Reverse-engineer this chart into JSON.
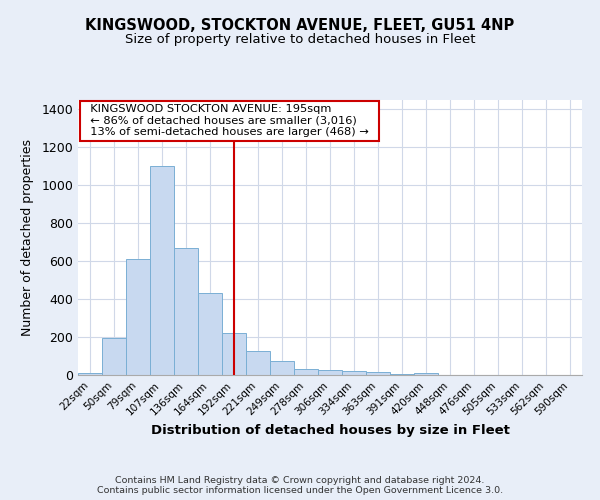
{
  "title1": "KINGSWOOD, STOCKTON AVENUE, FLEET, GU51 4NP",
  "title2": "Size of property relative to detached houses in Fleet",
  "xlabel": "Distribution of detached houses by size in Fleet",
  "ylabel": "Number of detached properties",
  "bar_labels": [
    "22sqm",
    "50sqm",
    "79sqm",
    "107sqm",
    "136sqm",
    "164sqm",
    "192sqm",
    "221sqm",
    "249sqm",
    "278sqm",
    "306sqm",
    "334sqm",
    "363sqm",
    "391sqm",
    "420sqm",
    "448sqm",
    "476sqm",
    "505sqm",
    "533sqm",
    "562sqm",
    "590sqm"
  ],
  "bar_values": [
    10,
    195,
    610,
    1100,
    670,
    430,
    220,
    125,
    75,
    30,
    25,
    20,
    15,
    5,
    10,
    0,
    0,
    0,
    0,
    0,
    0
  ],
  "bar_color": "#c8d9f0",
  "bar_edge_color": "#7aafd4",
  "vline_x": 6,
  "vline_color": "#cc0000",
  "annotation_title": "KINGSWOOD STOCKTON AVENUE: 195sqm",
  "annotation_line2": "← 86% of detached houses are smaller (3,016)",
  "annotation_line3": "13% of semi-detached houses are larger (468) →",
  "annotation_box_color": "#ffffff",
  "annotation_box_edge": "#cc0000",
  "ylim": [
    0,
    1450
  ],
  "yticks": [
    0,
    200,
    400,
    600,
    800,
    1000,
    1200,
    1400
  ],
  "plot_bg_color": "#ffffff",
  "fig_bg_color": "#e8eef8",
  "grid_color": "#d0d8e8",
  "footer": "Contains HM Land Registry data © Crown copyright and database right 2024.\nContains public sector information licensed under the Open Government Licence 3.0."
}
